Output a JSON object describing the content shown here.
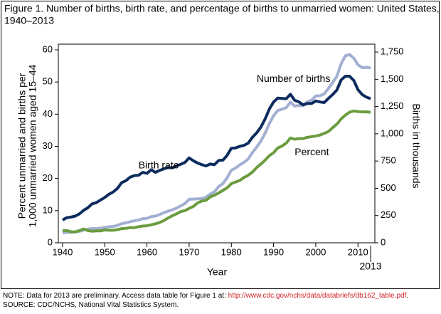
{
  "chart_data": {
    "type": "line",
    "title": [
      "Figure 1. Number of births, birth rate, and percentage of births to unmarried women: United States,",
      "1940–2013"
    ],
    "x_label": "Year",
    "y_label": [
      "Percent unmarried and births per",
      "1,000 unmarried women aged 15–44"
    ],
    "y2_label": "Births in thousands",
    "x": [
      1940,
      1941,
      1942,
      1943,
      1944,
      1945,
      1946,
      1947,
      1948,
      1949,
      1950,
      1951,
      1952,
      1953,
      1954,
      1955,
      1956,
      1957,
      1958,
      1959,
      1960,
      1961,
      1962,
      1963,
      1964,
      1965,
      1966,
      1967,
      1968,
      1969,
      1970,
      1971,
      1972,
      1973,
      1974,
      1975,
      1976,
      1977,
      1978,
      1979,
      1980,
      1981,
      1982,
      1983,
      1984,
      1985,
      1986,
      1987,
      1988,
      1989,
      1990,
      1991,
      1992,
      1993,
      1994,
      1995,
      1996,
      1997,
      1998,
      1999,
      2000,
      2001,
      2002,
      2003,
      2004,
      2005,
      2006,
      2007,
      2008,
      2009,
      2010,
      2011,
      2012,
      2013
    ],
    "series": [
      {
        "name": "Number of births",
        "color": "#a3afd2",
        "axis": "y2",
        "values": [
          90,
          96,
          96,
          99,
          105,
          117,
          125,
          131,
          130,
          134,
          141,
          147,
          150,
          160,
          176,
          183,
          193,
          201,
          209,
          221,
          224,
          240,
          245,
          259,
          276,
          291,
          302,
          318,
          339,
          360,
          399,
          401,
          403,
          407,
          418,
          448,
          468,
          516,
          544,
          597,
          666,
          686,
          715,
          738,
          770,
          828,
          878,
          933,
          1005,
          1094,
          1165,
          1214,
          1225,
          1240,
          1290,
          1254,
          1260,
          1257,
          1294,
          1308,
          1347,
          1349,
          1366,
          1416,
          1470,
          1527,
          1641,
          1715,
          1727,
          1694,
          1633,
          1607,
          1609,
          1605
        ]
      },
      {
        "name": "Birth rate",
        "color": "#0c2b5e",
        "axis": "y",
        "values": [
          7.1,
          7.8,
          8.0,
          8.3,
          9.0,
          10.1,
          10.9,
          12.1,
          12.5,
          13.3,
          14.1,
          15.1,
          15.8,
          16.9,
          18.7,
          19.3,
          20.4,
          20.9,
          21.0,
          21.9,
          21.6,
          22.7,
          21.9,
          22.5,
          23.0,
          23.4,
          23.3,
          23.9,
          24.4,
          25.0,
          26.4,
          25.5,
          24.8,
          24.3,
          23.9,
          24.5,
          24.3,
          25.6,
          25.7,
          27.2,
          29.4,
          29.5,
          30.0,
          30.3,
          31.0,
          32.8,
          34.2,
          36.0,
          38.5,
          41.6,
          43.8,
          45.0,
          44.9,
          44.8,
          46.2,
          44.3,
          43.8,
          42.9,
          43.3,
          43.3,
          44.1,
          43.8,
          43.6,
          44.9,
          46.1,
          47.5,
          50.6,
          51.8,
          51.8,
          50.5,
          47.6,
          46.1,
          45.3,
          44.8
        ]
      },
      {
        "name": "Percent",
        "color": "#6b9c3f",
        "axis": "y",
        "values": [
          3.8,
          3.8,
          3.4,
          3.4,
          3.8,
          4.3,
          3.8,
          3.6,
          3.7,
          3.7,
          4.0,
          3.9,
          3.9,
          4.1,
          4.4,
          4.5,
          4.7,
          4.7,
          5.0,
          5.2,
          5.3,
          5.6,
          5.9,
          6.3,
          6.9,
          7.7,
          8.4,
          9.0,
          9.7,
          10.0,
          10.7,
          11.3,
          12.4,
          13.0,
          13.2,
          14.3,
          14.8,
          15.5,
          16.3,
          17.1,
          18.4,
          18.9,
          19.4,
          20.3,
          21.0,
          22.0,
          23.4,
          24.5,
          25.7,
          27.1,
          28.0,
          29.5,
          30.1,
          31.0,
          32.6,
          32.2,
          32.4,
          32.4,
          32.8,
          33.0,
          33.2,
          33.5,
          34.0,
          34.6,
          35.8,
          36.9,
          38.5,
          39.7,
          40.6,
          41.0,
          40.8,
          40.7,
          40.7,
          40.6
        ]
      }
    ],
    "xlim": [
      1939,
      2014
    ],
    "xticks": [
      1940,
      1950,
      1960,
      1970,
      1980,
      1990,
      2000,
      2010
    ],
    "ylim": [
      0,
      60
    ],
    "yticks": [
      0,
      10,
      20,
      30,
      40,
      50,
      60
    ],
    "y2lim": [
      0,
      1770
    ],
    "y2ticks": [
      0,
      250,
      500,
      750,
      {
        "value": 1000,
        "label": "1,000"
      },
      {
        "value": 1250,
        "label": "1,250"
      },
      {
        "value": 1500,
        "label": "1,500"
      },
      {
        "value": 1750,
        "label": "1,750"
      }
    ],
    "annotations": [
      {
        "text": "Number of births",
        "x": 1986,
        "y": 1500
      },
      {
        "text": "Birth rate",
        "x": 1958,
        "y": 24
      },
      {
        "text": "Percent",
        "x": 1995,
        "y": 28
      },
      {
        "text": "2013",
        "x": 2013,
        "y": -6
      }
    ],
    "notes": {
      "note": "NOTE: Data for 2013 are preliminary. Access data table for Figure 1 at: ",
      "link": "http://www.cdc.gov/nchs/data/databriefs/db162_table.pdf",
      "note_end": ".",
      "source": "SOURCE: CDC/NCHS, National Vital Statistics System."
    }
  }
}
